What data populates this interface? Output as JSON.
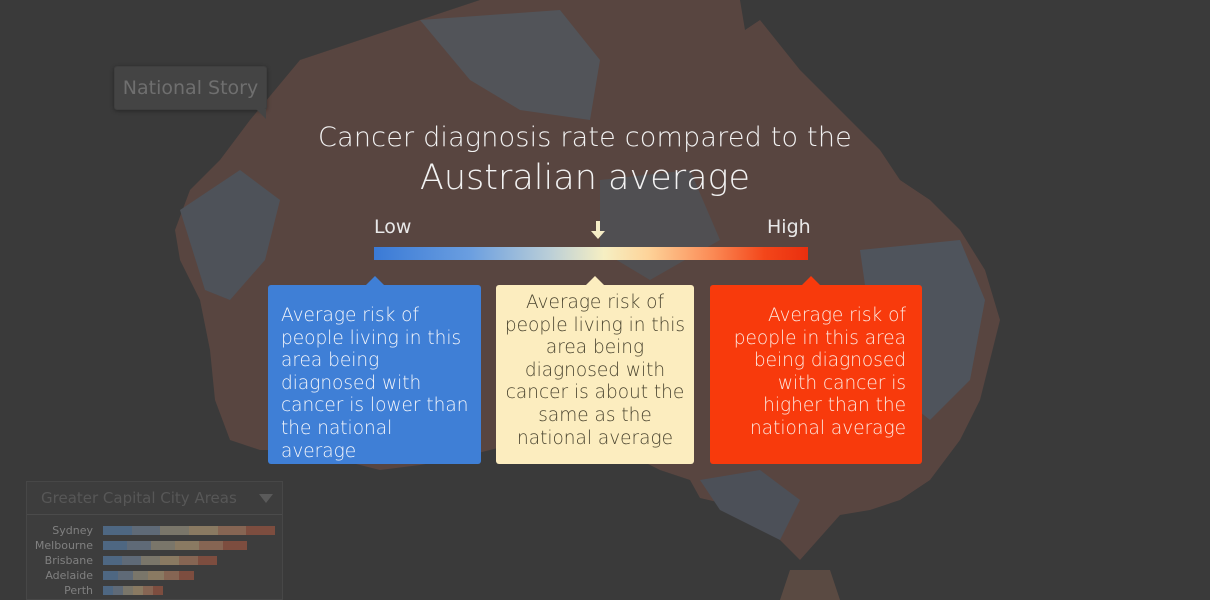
{
  "story_button": {
    "label": "National Story"
  },
  "heading": {
    "line1": "Cancer diagnosis rate compared to the",
    "line2": "Australian average"
  },
  "scale": {
    "low_label": "Low",
    "high_label": "High",
    "marker": "down-arrow-icon",
    "marker_level": 0.52,
    "colors": [
      "#3a7ad6",
      "#b8cdd8",
      "#f6efc3",
      "#fb8a55",
      "#ea2f0e"
    ]
  },
  "legend_cards": [
    {
      "text": "Average risk of people living in this area being diagnosed with cancer is lower than the national average",
      "color": "#3f7fd6"
    },
    {
      "text": "Average risk of people living in this area being diagnosed with cancer is about the same as the national average",
      "color": "#fcedbf"
    },
    {
      "text": "Average risk of people in this area being diagnosed with cancer is higher than the national average",
      "color": "#f83a0c"
    }
  ],
  "city_panel": {
    "title": "Greater Capital City Areas",
    "dropdown_icon": "triangle-down-icon",
    "cities": [
      {
        "name": "Sydney",
        "extent": 1.0
      },
      {
        "name": "Melbourne",
        "extent": 0.84
      },
      {
        "name": "Brisbane",
        "extent": 0.66
      },
      {
        "name": "Adelaide",
        "extent": 0.53
      },
      {
        "name": "Perth",
        "extent": 0.35
      }
    ]
  },
  "map": {
    "background": "#3a3a3a",
    "land_tint": "#5a4640",
    "region_low_tint": "#4e5560",
    "region_high_tint": "#5e4a3e"
  }
}
